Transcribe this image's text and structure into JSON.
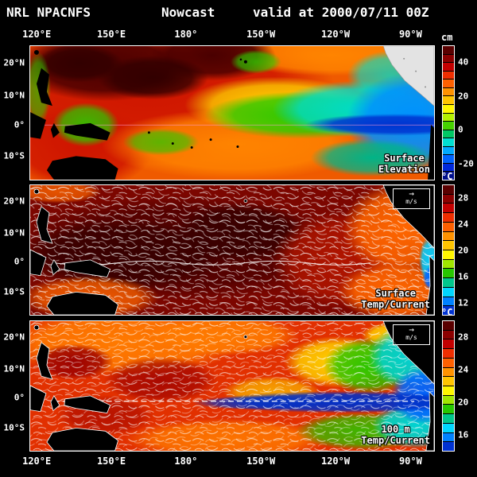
{
  "header": {
    "system": "NRL NPACNFS",
    "product": "Nowcast",
    "valid": "valid at 2000/07/11 00Z"
  },
  "axes": {
    "lon": [
      "120°E",
      "150°E",
      "180°",
      "150°W",
      "120°W",
      "90°W"
    ],
    "lat": [
      "20°N",
      "10°N",
      "0°",
      "10°S"
    ]
  },
  "panels": [
    {
      "id": "surface-elevation",
      "label1": "Surface",
      "label2": "Elevation",
      "colorbar": {
        "unit": "cm",
        "ticks": [
          {
            "label": "40",
            "pos": 12.5
          },
          {
            "label": "20",
            "pos": 37.5
          },
          {
            "label": "0",
            "pos": 62.5
          },
          {
            "label": "-20",
            "pos": 87.5
          }
        ],
        "colors": [
          "#5a0000",
          "#8c0000",
          "#c40000",
          "#ef2e00",
          "#ff6000",
          "#ff9200",
          "#ffc400",
          "#fff600",
          "#b4f000",
          "#46d200",
          "#00c864",
          "#00e1d2",
          "#00aaff",
          "#0064ff",
          "#0028dc",
          "#000f8c"
        ]
      }
    },
    {
      "id": "surface-temp-current",
      "label1": "Surface",
      "label2": "Temp/Current",
      "vector_scale": "m/s",
      "colorbar": {
        "unit": "°C",
        "ticks": [
          {
            "label": "28",
            "pos": 10
          },
          {
            "label": "24",
            "pos": 30
          },
          {
            "label": "20",
            "pos": 50
          },
          {
            "label": "16",
            "pos": 70
          },
          {
            "label": "12",
            "pos": 90
          }
        ],
        "colors": [
          "#5a0000",
          "#8c0000",
          "#c40000",
          "#ef2e00",
          "#ff6000",
          "#ff9200",
          "#ffc400",
          "#fff600",
          "#a0e600",
          "#28c800",
          "#00c88c",
          "#00d7ff",
          "#0082ff",
          "#0032d2"
        ]
      }
    },
    {
      "id": "100m-temp-current",
      "label1": "100 m",
      "label2": "Temp/Current",
      "vector_scale": "m/s",
      "colorbar": {
        "unit": "°C",
        "ticks": [
          {
            "label": "28",
            "pos": 12.5
          },
          {
            "label": "24",
            "pos": 37.5
          },
          {
            "label": "20",
            "pos": 62.5
          },
          {
            "label": "16",
            "pos": 87.5
          }
        ],
        "colors": [
          "#5a0000",
          "#8c0000",
          "#c40000",
          "#ef2e00",
          "#ff6000",
          "#ff9200",
          "#ffc400",
          "#fff600",
          "#a0e600",
          "#28c800",
          "#00c88c",
          "#00d7ff",
          "#0082ff",
          "#0032d2"
        ]
      }
    }
  ]
}
